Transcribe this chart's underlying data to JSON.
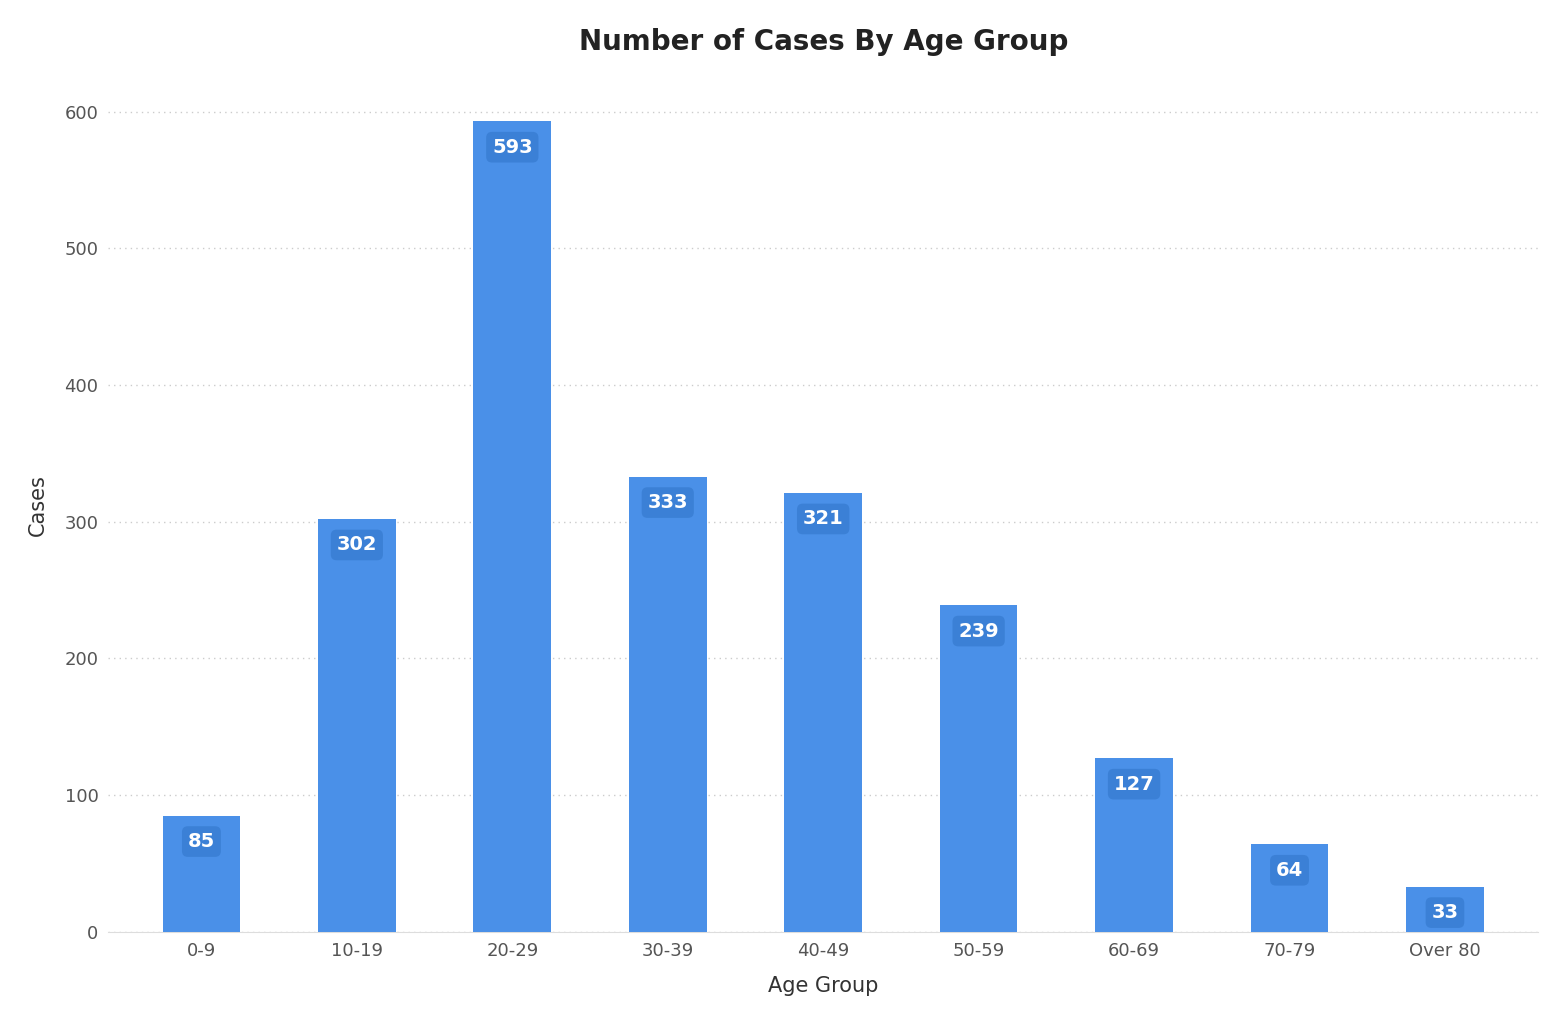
{
  "categories": [
    "0-9",
    "10-19",
    "20-29",
    "30-39",
    "40-49",
    "50-59",
    "60-69",
    "70-79",
    "Over 80"
  ],
  "values": [
    85,
    302,
    593,
    333,
    321,
    239,
    127,
    64,
    33
  ],
  "bar_color": "#4a90e8",
  "label_bg_color": "#3a7fd4",
  "label_text_color": "#ffffff",
  "title": "Number of Cases By Age Group",
  "xlabel": "Age Group",
  "ylabel": "Cases",
  "ylim": [
    0,
    625
  ],
  "yticks": [
    0,
    100,
    200,
    300,
    400,
    500,
    600
  ],
  "background_color": "#ffffff",
  "grid_color": "#cccccc",
  "title_fontsize": 20,
  "axis_label_fontsize": 15,
  "tick_fontsize": 13,
  "value_label_fontsize": 14,
  "bar_width": 0.5
}
